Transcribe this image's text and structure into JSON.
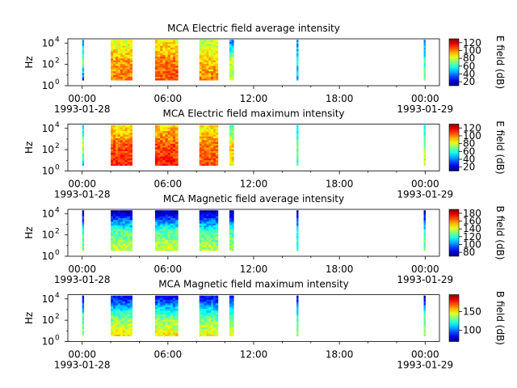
{
  "chart_data": [
    {
      "type": "heatmap",
      "title": "MCA  Electric field average intensity",
      "ylabel": "Hz",
      "colorbar_label": "E field (dB)",
      "colorbar_ticks": [
        "20",
        "40",
        "60",
        "80",
        "100",
        "120"
      ],
      "colorbar_range": [
        10,
        130
      ],
      "y_ticks": [
        "10",
        "10",
        "10"
      ],
      "y_tick_exponents": [
        "0",
        "2",
        "4"
      ],
      "x_ticks": [
        "00:00",
        "06:00",
        "12:00",
        "18:00",
        "00:00"
      ],
      "x_start_date": "1993-01-28",
      "x_end_date": "1993-01-29",
      "x_range_hours": [
        -1,
        25
      ],
      "y_range_log10": [
        0,
        4.4
      ],
      "bursts": [
        {
          "start_h": 0.0,
          "end_h": 0.1,
          "low_db": 35,
          "mid_db": 70,
          "high_db": 45
        },
        {
          "start_h": 2.0,
          "end_h": 3.5,
          "low_db": 100,
          "mid_db": 95,
          "high_db": 80
        },
        {
          "start_h": 5.1,
          "end_h": 6.7,
          "low_db": 105,
          "mid_db": 100,
          "high_db": 85
        },
        {
          "start_h": 8.2,
          "end_h": 9.5,
          "low_db": 100,
          "mid_db": 90,
          "high_db": 75
        },
        {
          "start_h": 10.3,
          "end_h": 10.6,
          "low_db": 75,
          "mid_db": 80,
          "high_db": 40
        },
        {
          "start_h": 15.0,
          "end_h": 15.1,
          "low_db": 45,
          "mid_db": 55,
          "high_db": 40
        },
        {
          "start_h": 23.9,
          "end_h": 24.0,
          "low_db": 70,
          "mid_db": 60,
          "high_db": 45
        }
      ]
    },
    {
      "type": "heatmap",
      "title": "MCA  Electric field maximum intensity",
      "ylabel": "Hz",
      "colorbar_label": "E field (dB)",
      "colorbar_ticks": [
        "20",
        "40",
        "60",
        "80",
        "100",
        "120"
      ],
      "colorbar_range": [
        10,
        130
      ],
      "y_ticks": [
        "10",
        "10",
        "10"
      ],
      "y_tick_exponents": [
        "0",
        "2",
        "4"
      ],
      "x_ticks": [
        "00:00",
        "06:00",
        "12:00",
        "18:00",
        "00:00"
      ],
      "x_start_date": "1993-01-28",
      "x_end_date": "1993-01-29",
      "x_range_hours": [
        -1,
        25
      ],
      "y_range_log10": [
        0,
        4.4
      ],
      "bursts": [
        {
          "start_h": 0.0,
          "end_h": 0.1,
          "low_db": 55,
          "mid_db": 80,
          "high_db": 50
        },
        {
          "start_h": 2.0,
          "end_h": 3.5,
          "low_db": 110,
          "mid_db": 105,
          "high_db": 85
        },
        {
          "start_h": 5.1,
          "end_h": 6.7,
          "low_db": 112,
          "mid_db": 105,
          "high_db": 90
        },
        {
          "start_h": 8.2,
          "end_h": 9.5,
          "low_db": 105,
          "mid_db": 100,
          "high_db": 85
        },
        {
          "start_h": 10.3,
          "end_h": 10.6,
          "low_db": 85,
          "mid_db": 90,
          "high_db": 60
        },
        {
          "start_h": 15.0,
          "end_h": 15.1,
          "low_db": 60,
          "mid_db": 70,
          "high_db": 50
        },
        {
          "start_h": 23.9,
          "end_h": 24.0,
          "low_db": 80,
          "mid_db": 75,
          "high_db": 55
        }
      ]
    },
    {
      "type": "heatmap",
      "title": "MCA  Magnetic field average intensity",
      "ylabel": "Hz",
      "colorbar_label": "B field (dB)",
      "colorbar_ticks": [
        "80",
        "100",
        "120",
        "140",
        "160",
        "180"
      ],
      "colorbar_range": [
        70,
        190
      ],
      "y_ticks": [
        "10",
        "10",
        "10"
      ],
      "y_tick_exponents": [
        "0",
        "2",
        "4"
      ],
      "x_ticks": [
        "00:00",
        "06:00",
        "12:00",
        "18:00",
        "00:00"
      ],
      "x_start_date": "1993-01-28",
      "x_end_date": "1993-01-29",
      "x_range_hours": [
        -1,
        25
      ],
      "y_range_log10": [
        0,
        4.4
      ],
      "bursts": [
        {
          "start_h": 0.0,
          "end_h": 0.1,
          "low_db": 130,
          "mid_db": 120,
          "high_db": 75
        },
        {
          "start_h": 2.0,
          "end_h": 3.5,
          "low_db": 140,
          "mid_db": 125,
          "high_db": 75
        },
        {
          "start_h": 5.1,
          "end_h": 6.7,
          "low_db": 140,
          "mid_db": 125,
          "high_db": 75
        },
        {
          "start_h": 8.2,
          "end_h": 9.5,
          "low_db": 138,
          "mid_db": 122,
          "high_db": 75
        },
        {
          "start_h": 10.3,
          "end_h": 10.6,
          "low_db": 135,
          "mid_db": 125,
          "high_db": 75
        },
        {
          "start_h": 15.0,
          "end_h": 15.1,
          "low_db": 125,
          "mid_db": 115,
          "high_db": 75
        },
        {
          "start_h": 23.9,
          "end_h": 24.0,
          "low_db": 130,
          "mid_db": 118,
          "high_db": 75
        }
      ]
    },
    {
      "type": "heatmap",
      "title": "MCA  Magnetic field maximum intensity",
      "ylabel": "Hz",
      "colorbar_label": "B field (dB)",
      "colorbar_ticks": [
        "100",
        "150"
      ],
      "colorbar_range": [
        70,
        195
      ],
      "y_ticks": [
        "10",
        "10",
        "10"
      ],
      "y_tick_exponents": [
        "0",
        "2",
        "4"
      ],
      "x_ticks": [
        "00:00",
        "06:00",
        "12:00",
        "18:00",
        "00:00"
      ],
      "x_start_date": "1993-01-28",
      "x_end_date": "1993-01-29",
      "x_range_hours": [
        -1,
        25
      ],
      "y_range_log10": [
        0,
        4.4
      ],
      "bursts": [
        {
          "start_h": 0.0,
          "end_h": 0.1,
          "low_db": 140,
          "mid_db": 125,
          "high_db": 80
        },
        {
          "start_h": 2.0,
          "end_h": 3.5,
          "low_db": 150,
          "mid_db": 130,
          "high_db": 85
        },
        {
          "start_h": 5.1,
          "end_h": 6.7,
          "low_db": 150,
          "mid_db": 130,
          "high_db": 85
        },
        {
          "start_h": 8.2,
          "end_h": 9.5,
          "low_db": 148,
          "mid_db": 128,
          "high_db": 85
        },
        {
          "start_h": 10.3,
          "end_h": 10.6,
          "low_db": 145,
          "mid_db": 130,
          "high_db": 85
        },
        {
          "start_h": 15.0,
          "end_h": 15.1,
          "low_db": 135,
          "mid_db": 120,
          "high_db": 80
        },
        {
          "start_h": 23.9,
          "end_h": 24.0,
          "low_db": 140,
          "mid_db": 125,
          "high_db": 80
        }
      ]
    }
  ]
}
